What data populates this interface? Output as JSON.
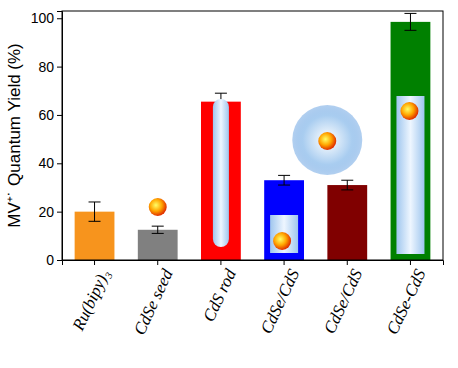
{
  "chart_data": {
    "type": "bar",
    "y_label": "MV⁺˙ Quantum Yield (%)",
    "categories": [
      "Ru(bipy)₃",
      "CdSe seed",
      "CdS rod",
      "CdSe/CdS",
      "CdSe/CdS",
      "CdSe-CdS"
    ],
    "values": [
      20,
      12.5,
      65.5,
      33,
      31,
      98.5
    ],
    "errors": [
      4,
      1.5,
      3.5,
      2,
      2,
      3.5
    ],
    "colors": [
      "#f7941d",
      "#808080",
      "#ff0000",
      "#0000ff",
      "#800000",
      "#008000"
    ],
    "ylim": [
      0,
      103
    ],
    "yticks": [
      0,
      20,
      40,
      60,
      80,
      100
    ],
    "grid": false
  }
}
